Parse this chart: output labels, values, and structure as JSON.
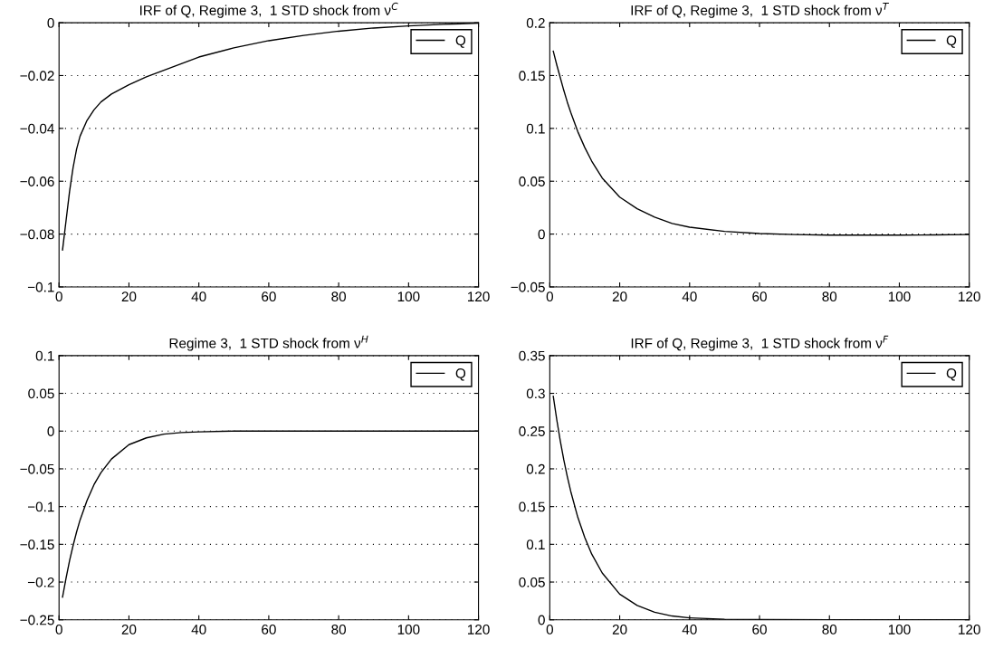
{
  "chart_data": [
    {
      "type": "line",
      "title": "IRF of Q, Regime 3,  1 STD shock from ν$^{C}$",
      "x": [
        1,
        2,
        3,
        4,
        5,
        6,
        8,
        10,
        12,
        15,
        20,
        25,
        30,
        35,
        40,
        50,
        60,
        70,
        80,
        90,
        100,
        110,
        120
      ],
      "series": [
        {
          "name": "Q",
          "color": "#000000",
          "values": [
            -0.086,
            -0.075,
            -0.064,
            -0.055,
            -0.048,
            -0.043,
            -0.037,
            -0.033,
            -0.03,
            -0.027,
            -0.0235,
            -0.0205,
            -0.018,
            -0.0155,
            -0.013,
            -0.0095,
            -0.0068,
            -0.0048,
            -0.0032,
            -0.002,
            -0.0012,
            -0.0006,
            -0.0002
          ]
        }
      ],
      "xlim": [
        0,
        120
      ],
      "xticks": [
        0,
        20,
        40,
        60,
        80,
        100,
        120
      ],
      "ylim": [
        -0.1,
        0
      ],
      "yticks": [
        -0.1,
        -0.08,
        -0.06,
        -0.04,
        -0.02,
        0
      ],
      "grid": "y",
      "legend": "top right",
      "line_style": "solid",
      "marker": "none"
    },
    {
      "type": "line",
      "title": "IRF of Q, Regime 3,  1 STD shock from ν$^{T}$",
      "x": [
        1,
        2,
        3,
        4,
        5,
        6,
        8,
        10,
        12,
        15,
        20,
        25,
        30,
        35,
        40,
        50,
        60,
        70,
        80,
        90,
        100,
        110,
        120
      ],
      "series": [
        {
          "name": "Q",
          "color": "#000000",
          "values": [
            0.173,
            0.16,
            0.148,
            0.136,
            0.125,
            0.115,
            0.097,
            0.082,
            0.069,
            0.053,
            0.035,
            0.024,
            0.016,
            0.01,
            0.0065,
            0.0025,
            0.0005,
            -0.0005,
            -0.001,
            -0.001,
            -0.001,
            -0.0008,
            -0.0005
          ]
        }
      ],
      "xlim": [
        0,
        120
      ],
      "xticks": [
        0,
        20,
        40,
        60,
        80,
        100,
        120
      ],
      "ylim": [
        -0.05,
        0.2
      ],
      "yticks": [
        -0.05,
        0,
        0.05,
        0.1,
        0.15,
        0.2
      ],
      "grid": "y",
      "legend": "top right",
      "line_style": "solid",
      "marker": "none"
    },
    {
      "type": "line",
      "title": "Regime 3,  1 STD shock from ν$^{H}$",
      "x": [
        1,
        2,
        3,
        4,
        5,
        6,
        8,
        10,
        12,
        15,
        20,
        25,
        30,
        35,
        40,
        50,
        60,
        80,
        100,
        120
      ],
      "series": [
        {
          "name": "Q",
          "color": "#000000",
          "values": [
            -0.22,
            -0.195,
            -0.172,
            -0.152,
            -0.134,
            -0.118,
            -0.092,
            -0.071,
            -0.055,
            -0.037,
            -0.018,
            -0.009,
            -0.004,
            -0.002,
            -0.001,
            0,
            0,
            0,
            0,
            0
          ]
        }
      ],
      "xlim": [
        0,
        120
      ],
      "xticks": [
        0,
        20,
        40,
        60,
        80,
        100,
        120
      ],
      "ylim": [
        -0.25,
        0.1
      ],
      "yticks": [
        -0.25,
        -0.2,
        -0.15,
        -0.1,
        -0.05,
        0,
        0.05,
        0.1
      ],
      "grid": "y",
      "legend": "top right",
      "line_style": "solid",
      "marker": "none"
    },
    {
      "type": "line",
      "title": "IRF of Q, Regime 3,  1 STD shock from ν$^{F}$",
      "x": [
        1,
        2,
        3,
        4,
        5,
        6,
        8,
        10,
        12,
        15,
        20,
        25,
        30,
        35,
        40,
        50,
        60,
        80,
        100,
        120
      ],
      "series": [
        {
          "name": "Q",
          "color": "#000000",
          "values": [
            0.296,
            0.265,
            0.237,
            0.212,
            0.19,
            0.17,
            0.136,
            0.109,
            0.087,
            0.062,
            0.034,
            0.019,
            0.01,
            0.005,
            0.0025,
            0.0007,
            0.0002,
            0,
            0,
            0
          ]
        }
      ],
      "xlim": [
        0,
        120
      ],
      "xticks": [
        0,
        20,
        40,
        60,
        80,
        100,
        120
      ],
      "ylim": [
        0,
        0.35
      ],
      "yticks": [
        0,
        0.05,
        0.1,
        0.15,
        0.2,
        0.25,
        0.3,
        0.35
      ],
      "grid": "y",
      "legend": "top right",
      "line_style": "solid",
      "marker": "none"
    }
  ]
}
